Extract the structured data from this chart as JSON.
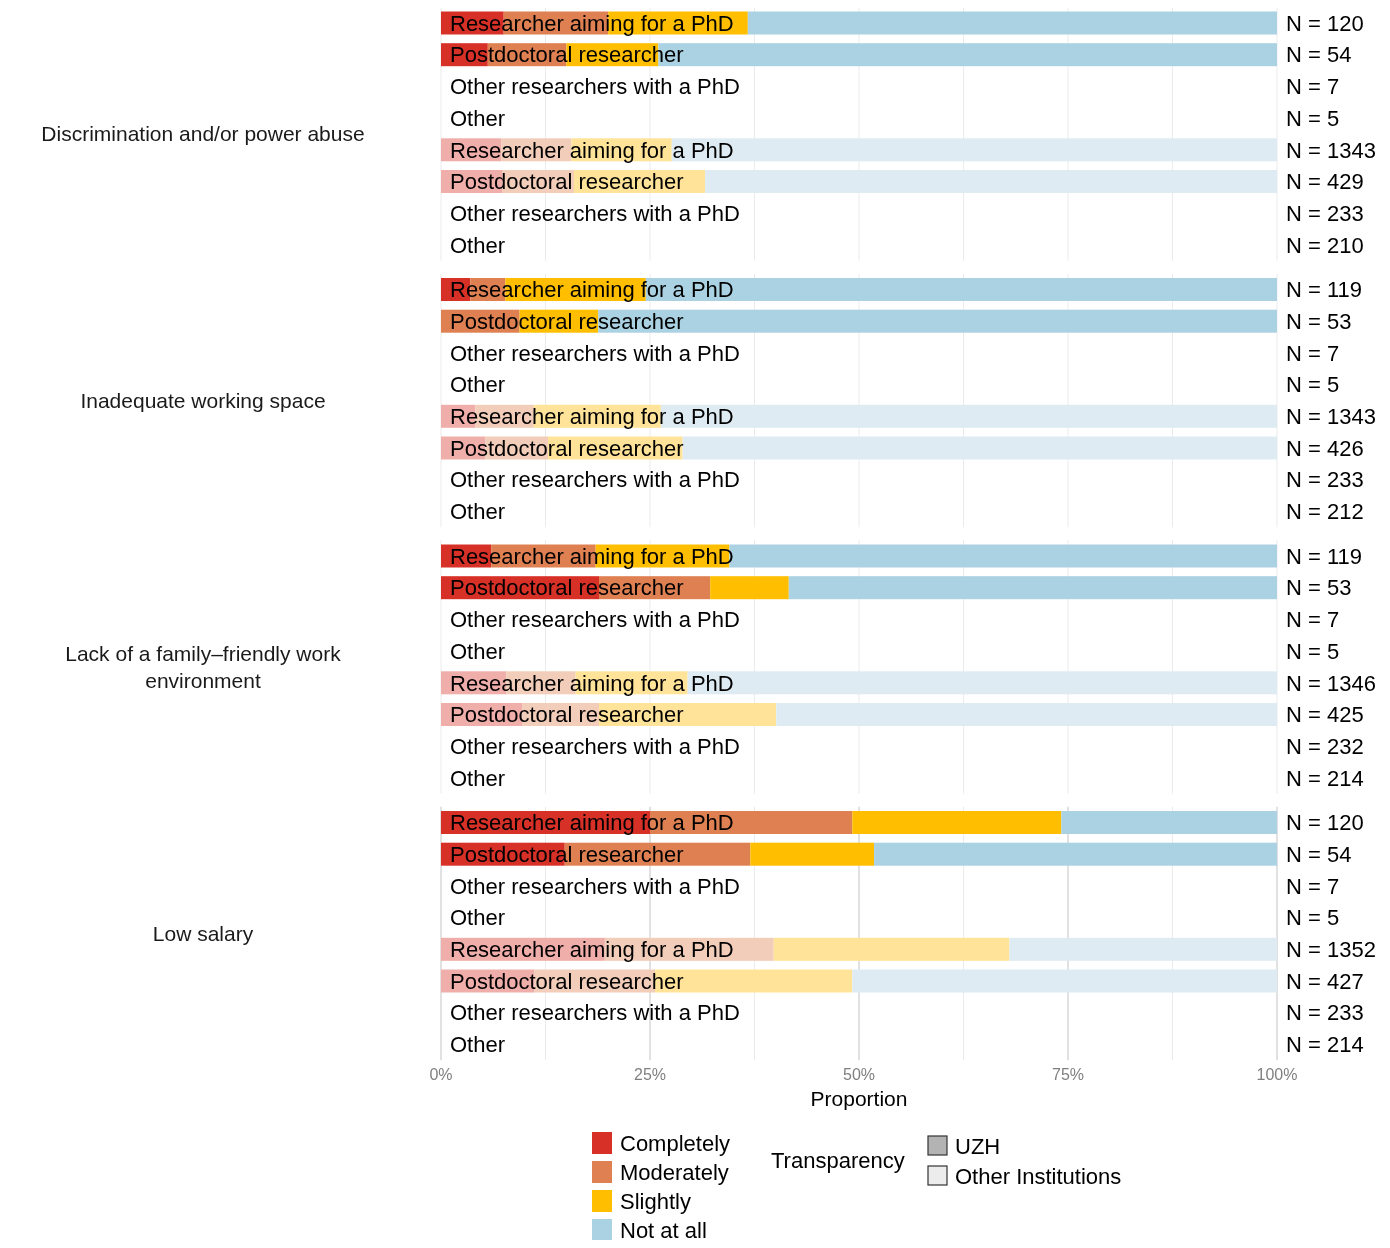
{
  "chart_data": [
    {
      "type": "bar",
      "orientation": "horizontal",
      "stacked": true,
      "ylabel": "Discrimination and/or power abuse",
      "categories": [
        "Researcher aiming for a PhD",
        "Postdoctoral researcher",
        "Other researchers with a PhD",
        "Other",
        "Researcher aiming for a PhD",
        "Postdoctoral researcher",
        "Other researchers with a PhD",
        "Other"
      ],
      "series": [
        {
          "values": [
            7.5,
            5.6,
            null,
            null,
            7.2,
            7.3,
            null,
            null
          ],
          "colors": [
            "#d73027",
            "#d73027",
            null,
            null,
            "#f0aeaa",
            "#f0aeaa",
            null,
            null
          ]
        },
        {
          "values": [
            12.5,
            9.4,
            null,
            null,
            8.4,
            8.6,
            null,
            null
          ],
          "colors": [
            "#df8052",
            "#df8052",
            null,
            null,
            "#f2cdb9",
            "#f2cdb9",
            null,
            null
          ]
        },
        {
          "values": [
            16.7,
            11.0,
            null,
            null,
            12.0,
            15.7,
            null,
            null
          ],
          "colors": [
            "#ffbf00",
            "#ffbf00",
            null,
            null,
            "#ffe398",
            "#ffe398",
            null,
            null
          ]
        },
        {
          "values": [
            63.3,
            74.0,
            null,
            null,
            72.4,
            68.4,
            null,
            null
          ],
          "colors": [
            "#abd2e3",
            "#abd2e3",
            null,
            null,
            "#deebf2",
            "#deebf2",
            null,
            null
          ]
        }
      ],
      "annotations": [
        "N = 120",
        "N = 54",
        "N = 7",
        "N = 5",
        "N = 1343",
        "N = 429",
        "N = 233",
        "N = 210"
      ],
      "xlim": [
        0,
        100
      ],
      "xticks": [
        {
          "value": 0,
          "label": null
        },
        {
          "value": 12.5,
          "label": null
        },
        {
          "value": 25,
          "label": null
        },
        {
          "value": 37.5,
          "label": null
        },
        {
          "value": 50,
          "label": null
        },
        {
          "value": 62.5,
          "label": null
        },
        {
          "value": 75,
          "label": null
        },
        {
          "value": 87.5,
          "label": null
        },
        {
          "value": 100,
          "label": null
        }
      ],
      "grid": "x",
      "tick_labels": "y"
    },
    {
      "type": "bar",
      "orientation": "horizontal",
      "stacked": true,
      "ylabel": "Inadequate working space",
      "categories": [
        "Researcher aiming for a PhD",
        "Postdoctoral researcher",
        "Other researchers with a PhD",
        "Other",
        "Researcher aiming for a PhD",
        "Postdoctoral researcher",
        "Other researchers with a PhD",
        "Other"
      ],
      "series": [
        {
          "values": [
            3.5,
            0,
            null,
            null,
            4.1,
            5.3,
            null,
            null
          ],
          "colors": [
            "#d73027",
            "#d73027",
            null,
            null,
            "#f0aeaa",
            "#f0aeaa",
            null,
            null
          ]
        },
        {
          "values": [
            4.2,
            9.4,
            null,
            null,
            7.0,
            7.5,
            null,
            null
          ],
          "colors": [
            "#df8052",
            "#df8052",
            null,
            null,
            "#f2cdb9",
            "#f2cdb9",
            null,
            null
          ]
        },
        {
          "values": [
            16.8,
            9.4,
            null,
            null,
            15.2,
            16.1,
            null,
            null
          ],
          "colors": [
            "#ffbf00",
            "#ffbf00",
            null,
            null,
            "#ffe398",
            "#ffe398",
            null,
            null
          ]
        },
        {
          "values": [
            75.5,
            81.2,
            null,
            null,
            73.7,
            71.1,
            null,
            null
          ],
          "colors": [
            "#abd2e3",
            "#abd2e3",
            null,
            null,
            "#deebf2",
            "#deebf2",
            null,
            null
          ]
        }
      ],
      "annotations": [
        "N = 119",
        "N = 53",
        "N = 7",
        "N = 5",
        "N = 1343",
        "N = 426",
        "N = 233",
        "N = 212"
      ],
      "xlim": [
        0,
        100
      ],
      "xticks": [
        {
          "value": 0,
          "label": null
        },
        {
          "value": 12.5,
          "label": null
        },
        {
          "value": 25,
          "label": null
        },
        {
          "value": 37.5,
          "label": null
        },
        {
          "value": 50,
          "label": null
        },
        {
          "value": 62.5,
          "label": null
        },
        {
          "value": 75,
          "label": null
        },
        {
          "value": 87.5,
          "label": null
        },
        {
          "value": 100,
          "label": null
        }
      ],
      "grid": "x",
      "tick_labels": "y"
    },
    {
      "type": "bar",
      "orientation": "horizontal",
      "stacked": true,
      "ylabel": "Lack of a family–friendly work environment",
      "categories": [
        "Researcher aiming for a PhD",
        "Postdoctoral researcher",
        "Other researchers with a PhD",
        "Other",
        "Researcher aiming for a PhD",
        "Postdoctoral researcher",
        "Other researchers with a PhD",
        "Other"
      ],
      "series": [
        {
          "values": [
            6.0,
            18.9,
            null,
            null,
            7.8,
            9.7,
            null,
            null
          ],
          "colors": [
            "#d73027",
            "#d73027",
            null,
            null,
            "#f0aeaa",
            "#f0aeaa",
            null,
            null
          ]
        },
        {
          "values": [
            12.5,
            13.3,
            null,
            null,
            8.3,
            9.2,
            null,
            null
          ],
          "colors": [
            "#df8052",
            "#df8052",
            null,
            null,
            "#f2cdb9",
            "#f2cdb9",
            null,
            null
          ]
        },
        {
          "values": [
            16.0,
            9.4,
            null,
            null,
            13.4,
            21.2,
            null,
            null
          ],
          "colors": [
            "#ffbf00",
            "#ffbf00",
            null,
            null,
            "#ffe398",
            "#ffe398",
            null,
            null
          ]
        },
        {
          "values": [
            65.5,
            58.4,
            null,
            null,
            70.5,
            59.9,
            null,
            null
          ],
          "colors": [
            "#abd2e3",
            "#abd2e3",
            null,
            null,
            "#deebf2",
            "#deebf2",
            null,
            null
          ]
        }
      ],
      "annotations": [
        "N = 119",
        "N = 53",
        "N = 7",
        "N = 5",
        "N = 1346",
        "N = 425",
        "N = 232",
        "N = 214"
      ],
      "xlim": [
        0,
        100
      ],
      "xticks": [
        {
          "value": 0,
          "label": null
        },
        {
          "value": 12.5,
          "label": null
        },
        {
          "value": 25,
          "label": null
        },
        {
          "value": 37.5,
          "label": null
        },
        {
          "value": 50,
          "label": null
        },
        {
          "value": 62.5,
          "label": null
        },
        {
          "value": 75,
          "label": null
        },
        {
          "value": 87.5,
          "label": null
        },
        {
          "value": 100,
          "label": null
        }
      ],
      "grid": "x",
      "tick_labels": "y"
    },
    {
      "type": "bar",
      "orientation": "horizontal",
      "stacked": true,
      "ylabel": "Low salary",
      "xlabel": "Proportion",
      "categories": [
        "Researcher aiming for a PhD",
        "Postdoctoral researcher",
        "Other researchers with a PhD",
        "Other",
        "Researcher aiming for a PhD",
        "Postdoctoral researcher",
        "Other researchers with a PhD",
        "Other"
      ],
      "series": [
        {
          "name": "Completely",
          "color": "#d73027",
          "values": [
            25.0,
            14.8,
            null,
            null,
            19.6,
            11.2,
            null,
            null
          ],
          "colors": [
            "#d73027",
            "#d73027",
            null,
            null,
            "#f0aeaa",
            "#f0aeaa",
            null,
            null
          ]
        },
        {
          "name": "Moderately",
          "color": "#df8052",
          "values": [
            24.2,
            22.2,
            null,
            null,
            20.2,
            14.4,
            null,
            null
          ],
          "colors": [
            "#df8052",
            "#df8052",
            null,
            null,
            "#f2cdb9",
            "#f2cdb9",
            null,
            null
          ]
        },
        {
          "name": "Slightly",
          "color": "#ffbf00",
          "values": [
            25.0,
            14.8,
            null,
            null,
            28.2,
            23.6,
            null,
            null
          ],
          "colors": [
            "#ffbf00",
            "#ffbf00",
            null,
            null,
            "#ffe398",
            "#ffe398",
            null,
            null
          ]
        },
        {
          "name": "Not at all",
          "color": "#abd2e3",
          "values": [
            25.8,
            48.2,
            null,
            null,
            32.0,
            50.8,
            null,
            null
          ],
          "colors": [
            "#abd2e3",
            "#abd2e3",
            null,
            null,
            "#deebf2",
            "#deebf2",
            null,
            null
          ]
        }
      ],
      "xlim": [
        0,
        100
      ],
      "xticks": [
        {
          "value": 0,
          "label": "0%"
        },
        {
          "value": 12.5,
          "label": null
        },
        {
          "value": 25,
          "label": "25%"
        },
        {
          "value": 37.5,
          "label": null
        },
        {
          "value": 50,
          "label": "50%"
        },
        {
          "value": 62.5,
          "label": null
        },
        {
          "value": 75,
          "label": "75%"
        },
        {
          "value": 87.5,
          "label": null
        },
        {
          "value": 100,
          "label": "100%"
        }
      ],
      "grid": "x",
      "legend": "bottom",
      "annotations": [
        "N = 120",
        "N = 54",
        "N = 7",
        "N = 5",
        "N = 1352",
        "N = 427",
        "N = 233",
        "N = 214",
        "Transparency",
        "UZH",
        "Other Institutions"
      ]
    }
  ]
}
